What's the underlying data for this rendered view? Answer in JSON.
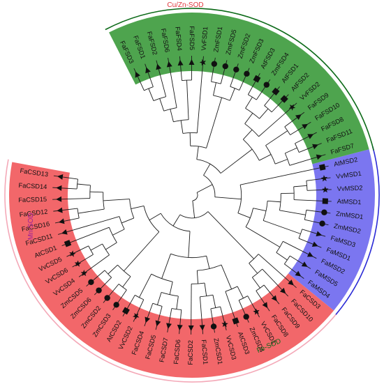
{
  "groups": [
    {
      "key": "cu",
      "name": "Cu/Zn-SOD",
      "sector": "#f2676a",
      "arc": "#f4a9b8",
      "text": "#e0363c"
    },
    {
      "key": "mn",
      "name": "Mn-SOD",
      "sector": "#7b76f0",
      "arc": "#2a2ad6",
      "text": "#9a1f9a"
    },
    {
      "key": "fe",
      "name": "Fe-SOD",
      "sector": "#4ea44e",
      "arc": "#0c6a18",
      "text": "#0c6a18"
    }
  ],
  "species_markers": {
    "Fa": "triangle",
    "Vv": "star",
    "At": "square",
    "Zm": "circle"
  },
  "leaves": [
    {
      "label": "FaCSD13",
      "group": "cu"
    },
    {
      "label": "FaCSD14",
      "group": "cu"
    },
    {
      "label": "FaCSD15",
      "group": "cu"
    },
    {
      "label": "FaCSD12",
      "group": "cu"
    },
    {
      "label": "FaCSD16",
      "group": "cu"
    },
    {
      "label": "FaCSD11",
      "group": "cu"
    },
    {
      "label": "AtCSD1",
      "group": "cu"
    },
    {
      "label": "VvCSD5",
      "group": "cu"
    },
    {
      "label": "VvCSD6",
      "group": "cu"
    },
    {
      "label": "VvCSD4",
      "group": "cu"
    },
    {
      "label": "ZmCSD5",
      "group": "cu"
    },
    {
      "label": "ZmCSD6",
      "group": "cu"
    },
    {
      "label": "ZmCSD2",
      "group": "cu"
    },
    {
      "label": "ZmCSD3",
      "group": "cu"
    },
    {
      "label": "AtCSD2",
      "group": "cu"
    },
    {
      "label": "VvCSD2",
      "group": "cu"
    },
    {
      "label": "FaCSD4",
      "group": "cu"
    },
    {
      "label": "FaCSD5",
      "group": "cu"
    },
    {
      "label": "FaCSD7",
      "group": "cu"
    },
    {
      "label": "FaCSD6",
      "group": "cu"
    },
    {
      "label": "FaCSD2",
      "group": "cu"
    },
    {
      "label": "FaCSD1",
      "group": "cu"
    },
    {
      "label": "ZmCSD1",
      "group": "cu"
    },
    {
      "label": "VvCSD3",
      "group": "cu"
    },
    {
      "label": "AtCSD3",
      "group": "cu"
    },
    {
      "label": "ZmCSD4",
      "group": "cu"
    },
    {
      "label": "VvCSD1",
      "group": "cu"
    },
    {
      "label": "FaCSD8",
      "group": "cu"
    },
    {
      "label": "FaCSD9",
      "group": "cu"
    },
    {
      "label": "FaCSD10",
      "group": "cu"
    },
    {
      "label": "FaCSD3",
      "group": "cu"
    },
    {
      "label": "FaMSD4",
      "group": "mn"
    },
    {
      "label": "FaMSD5",
      "group": "mn"
    },
    {
      "label": "FaMSD2",
      "group": "mn"
    },
    {
      "label": "FaMSD1",
      "group": "mn"
    },
    {
      "label": "FaMSD3",
      "group": "mn"
    },
    {
      "label": "ZmMSD2",
      "group": "mn"
    },
    {
      "label": "ZmMSD1",
      "group": "mn"
    },
    {
      "label": "AtMSD1",
      "group": "mn"
    },
    {
      "label": "VvMSD2",
      "group": "mn"
    },
    {
      "label": "VvMSD1",
      "group": "mn"
    },
    {
      "label": "AtMSD2",
      "group": "mn"
    },
    {
      "label": "FaFSD7",
      "group": "fe"
    },
    {
      "label": "FaFSD11",
      "group": "fe"
    },
    {
      "label": "FaFSD8",
      "group": "fe"
    },
    {
      "label": "FaFSD10",
      "group": "fe"
    },
    {
      "label": "FaFSD9",
      "group": "fe"
    },
    {
      "label": "VvFSD2",
      "group": "fe"
    },
    {
      "label": "AtFSD2",
      "group": "fe"
    },
    {
      "label": "AtFSD1",
      "group": "fe"
    },
    {
      "label": "ZmFSD4",
      "group": "fe"
    },
    {
      "label": "AtFSD3",
      "group": "fe"
    },
    {
      "label": "ZmFSD3",
      "group": "fe"
    },
    {
      "label": "ZmFSD2",
      "group": "fe"
    },
    {
      "label": "ZmFSD5",
      "group": "fe"
    },
    {
      "label": "ZmFSD1",
      "group": "fe"
    },
    {
      "label": "VvFSD1",
      "group": "fe"
    },
    {
      "label": "FaFSD5",
      "group": "fe"
    },
    {
      "label": "FaFSD4",
      "group": "fe"
    },
    {
      "label": "FaFSD6",
      "group": "fe"
    },
    {
      "label": "FaFSD2",
      "group": "fe"
    },
    {
      "label": "FaFSD1",
      "group": "fe"
    },
    {
      "label": "FaFSD3",
      "group": "fe"
    }
  ]
}
